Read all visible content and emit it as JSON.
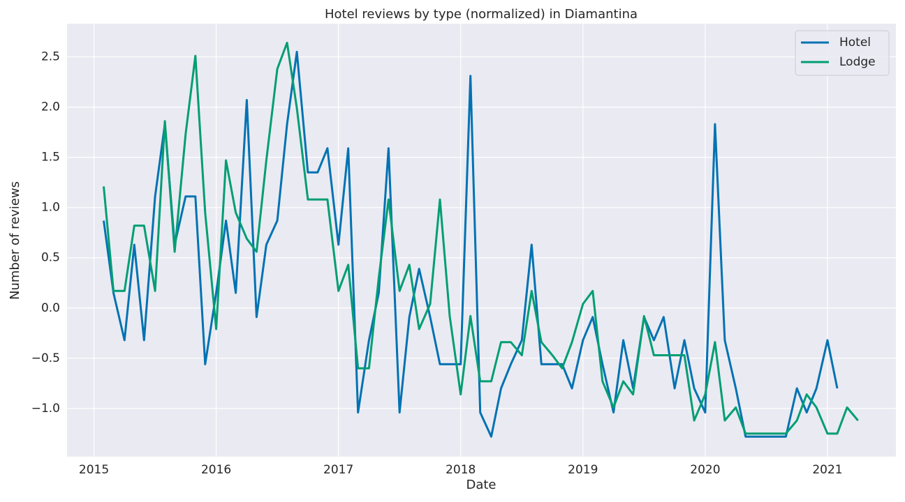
{
  "chart_data": {
    "type": "line",
    "title": "Hotel reviews by type (normalized) in Diamantina",
    "x_label": "Date",
    "y_label": "Number of reviews",
    "x": [
      2015.08,
      2015.16,
      2015.25,
      2015.33,
      2015.41,
      2015.5,
      2015.58,
      2015.66,
      2015.75,
      2015.83,
      2015.91,
      2016,
      2016.08,
      2016.16,
      2016.25,
      2016.33,
      2016.41,
      2016.5,
      2016.58,
      2016.66,
      2016.75,
      2016.83,
      2016.91,
      2017,
      2017.08,
      2017.16,
      2017.25,
      2017.33,
      2017.41,
      2017.5,
      2017.58,
      2017.66,
      2017.75,
      2017.83,
      2017.91,
      2018,
      2018.08,
      2018.16,
      2018.25,
      2018.33,
      2018.41,
      2018.5,
      2018.58,
      2018.66,
      2018.75,
      2018.83,
      2018.91,
      2019,
      2019.08,
      2019.16,
      2019.25,
      2019.33,
      2019.41,
      2019.5,
      2019.58,
      2019.66,
      2019.75,
      2019.83,
      2019.91,
      2020,
      2020.08,
      2020.16,
      2020.25,
      2020.33,
      2020.41,
      2020.5,
      2020.58,
      2020.66,
      2020.75,
      2020.83,
      2020.91,
      2021,
      2021.08,
      2021.16,
      2021.25
    ],
    "series": [
      {
        "name": "Hotel",
        "color": "#0072b2",
        "values": [
          0.87,
          0.15,
          -0.32,
          0.63,
          -0.32,
          1.11,
          1.83,
          0.63,
          1.11,
          1.11,
          -0.56,
          0.15,
          0.87,
          0.15,
          2.07,
          -0.09,
          0.63,
          0.87,
          1.83,
          2.55,
          1.35,
          1.35,
          1.59,
          0.63,
          1.59,
          -1.04,
          -0.32,
          0.15,
          1.59,
          -1.04,
          -0.09,
          0.39,
          -0.09,
          -0.56,
          -0.56,
          -0.56,
          2.31,
          -1.04,
          -1.28,
          -0.8,
          -0.56,
          -0.32,
          0.63,
          -0.56,
          -0.56,
          -0.56,
          -0.8,
          -0.32,
          -0.09,
          -0.56,
          -1.04,
          -0.32,
          -0.8,
          -0.09,
          -0.32,
          -0.09,
          -0.8,
          -0.32,
          -0.8,
          -1.04,
          1.83,
          -0.32,
          -0.8,
          -1.28,
          -1.28,
          -1.28,
          -1.28,
          -1.28,
          -0.8,
          -1.04,
          -0.8,
          -0.32,
          -0.8,
          null,
          null
        ]
      },
      {
        "name": "Lodge",
        "color": "#009e73",
        "values": [
          1.21,
          0.17,
          0.17,
          0.82,
          0.82,
          0.17,
          1.86,
          0.56,
          1.73,
          2.51,
          0.95,
          -0.21,
          1.47,
          0.95,
          0.69,
          0.56,
          1.47,
          2.38,
          2.64,
          1.99,
          1.08,
          1.08,
          1.08,
          0.17,
          0.43,
          -0.6,
          -0.6,
          0.3,
          1.08,
          0.17,
          0.43,
          -0.21,
          0.04,
          1.08,
          -0.08,
          -0.86,
          -0.08,
          -0.73,
          -0.73,
          -0.34,
          -0.34,
          -0.47,
          0.17,
          -0.34,
          -0.47,
          -0.6,
          -0.34,
          0.04,
          0.17,
          -0.73,
          -0.99,
          -0.73,
          -0.86,
          -0.08,
          -0.47,
          -0.47,
          -0.47,
          -0.47,
          -1.12,
          -0.86,
          -0.34,
          -1.12,
          -0.99,
          -1.25,
          -1.25,
          -1.25,
          -1.25,
          -1.25,
          -1.12,
          -0.86,
          -0.99,
          -1.25,
          -1.25,
          -0.99,
          -1.12
        ]
      }
    ],
    "xlim": [
      2014.78,
      2021.56
    ],
    "xticks": [
      2015,
      2016,
      2017,
      2018,
      2019,
      2020,
      2021
    ],
    "ylim": [
      -1.48,
      2.83
    ],
    "yticks": [
      {
        "value": -1,
        "label": "−1.0"
      },
      {
        "value": -0.5,
        "label": "−0.5"
      },
      {
        "value": 0,
        "label": "0.0"
      },
      0.5,
      {
        "value": 1,
        "label": "1.0"
      },
      1.5,
      {
        "value": 2,
        "label": "2.0"
      },
      2.5
    ],
    "grid": true,
    "legend": "upper right"
  }
}
